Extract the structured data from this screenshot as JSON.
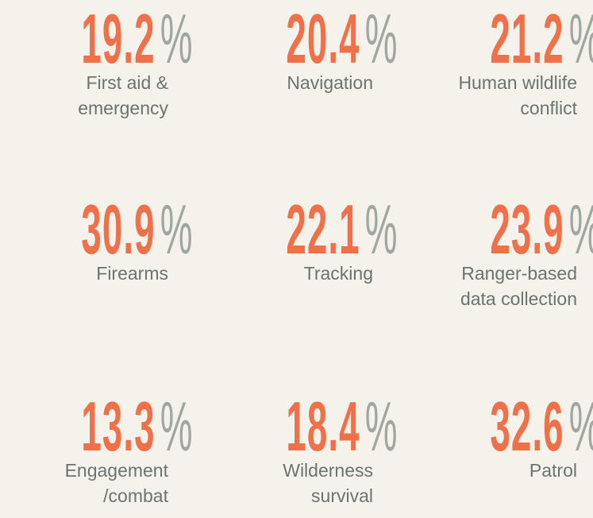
{
  "stats": [
    {
      "value": "19.2",
      "unit": "%",
      "label_lines": [
        "First aid &",
        "emergency"
      ]
    },
    {
      "value": "20.4",
      "unit": "%",
      "label_lines": [
        "Navigation"
      ]
    },
    {
      "value": "21.2",
      "unit": "%",
      "label_lines": [
        "Human wildlife",
        "conflict"
      ]
    },
    {
      "value": "30.9",
      "unit": "%",
      "label_lines": [
        "Firearms"
      ]
    },
    {
      "value": "22.1",
      "unit": "%",
      "label_lines": [
        "Tracking"
      ]
    },
    {
      "value": "23.9",
      "unit": "%",
      "label_lines": [
        "Ranger-based",
        "data collection"
      ]
    },
    {
      "value": "13.3",
      "unit": "%",
      "label_lines": [
        "Engagement",
        "/combat"
      ]
    },
    {
      "value": "18.4",
      "unit": "%",
      "label_lines": [
        "Wilderness",
        "survival"
      ]
    },
    {
      "value": "32.6",
      "unit": "%",
      "label_lines": [
        "Patrol"
      ]
    }
  ]
}
